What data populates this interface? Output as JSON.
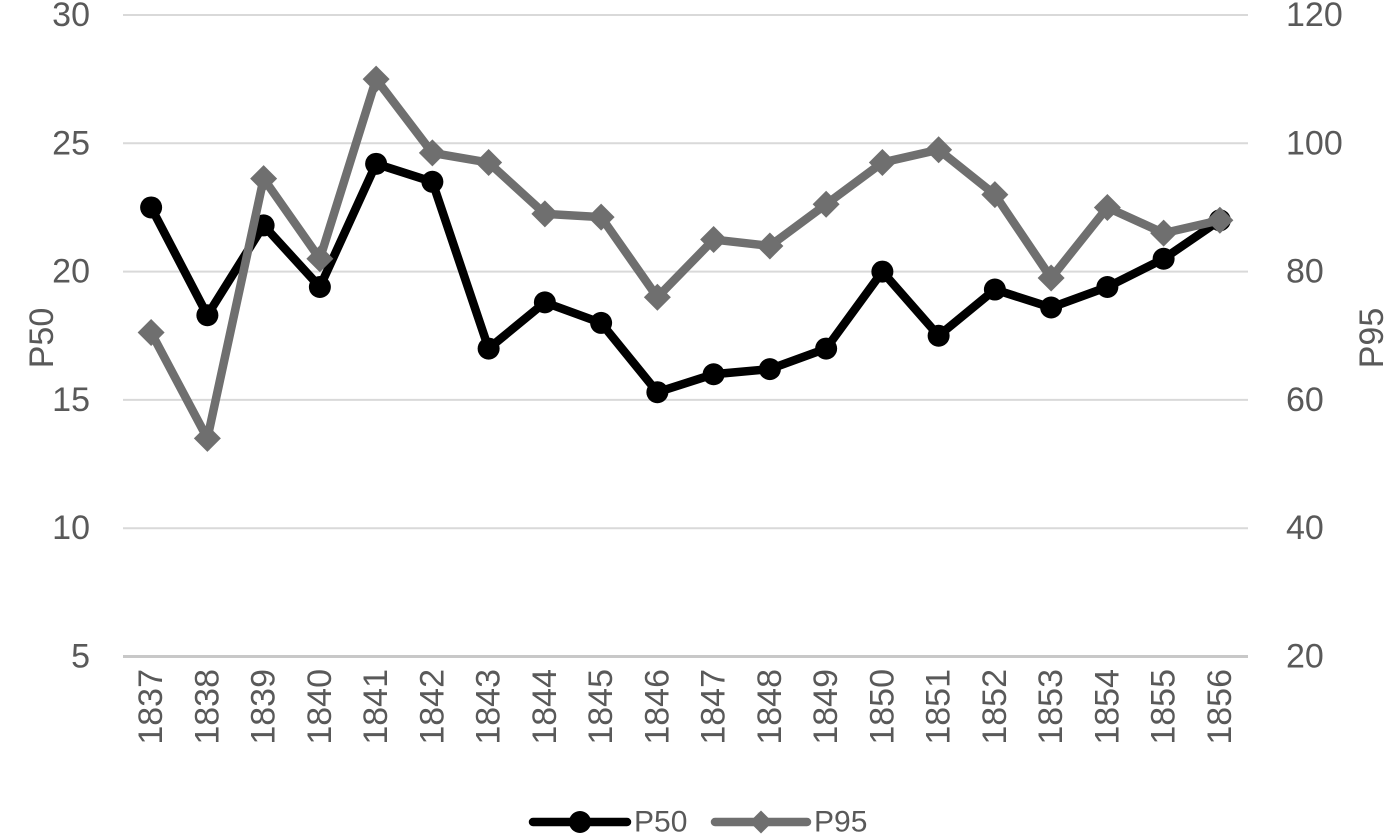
{
  "chart_data": {
    "type": "line",
    "title": "",
    "categories": [
      "1837",
      "1838",
      "1839",
      "1840",
      "1841",
      "1842",
      "1843",
      "1844",
      "1845",
      "1846",
      "1847",
      "1848",
      "1849",
      "1850",
      "1851",
      "1852",
      "1853",
      "1854",
      "1855",
      "1856"
    ],
    "series": [
      {
        "name": "P50",
        "axis": "left",
        "marker": "circle",
        "color": "#000000",
        "values": [
          22.5,
          18.3,
          21.8,
          19.4,
          24.2,
          23.5,
          17.0,
          18.8,
          18.0,
          15.3,
          16.0,
          16.2,
          17.0,
          20.0,
          17.5,
          19.3,
          18.6,
          19.4,
          20.5,
          22.0
        ]
      },
      {
        "name": "P95",
        "axis": "right",
        "marker": "diamond",
        "color": "#6f6f6f",
        "values": [
          70.5,
          54,
          94.5,
          82,
          110,
          98.5,
          97,
          89,
          88.5,
          76,
          85,
          84,
          90.5,
          97,
          99,
          92,
          79,
          90,
          86,
          88
        ]
      }
    ],
    "left_axis": {
      "title": "P50",
      "min": 5,
      "max": 30,
      "ticks": [
        30,
        25,
        20,
        15,
        10,
        5
      ]
    },
    "right_axis": {
      "title": "P95",
      "min": 20,
      "max": 120,
      "ticks": [
        120,
        100,
        80,
        60,
        40,
        20
      ]
    },
    "legend": {
      "position": "bottom",
      "entries": [
        "P50",
        "P95"
      ]
    },
    "grid": true,
    "styles": {
      "grid_color": "#d9d9d9",
      "baseline_color": "#c8c8c8",
      "axis_text_color": "#595959",
      "background": "#ffffff"
    }
  }
}
